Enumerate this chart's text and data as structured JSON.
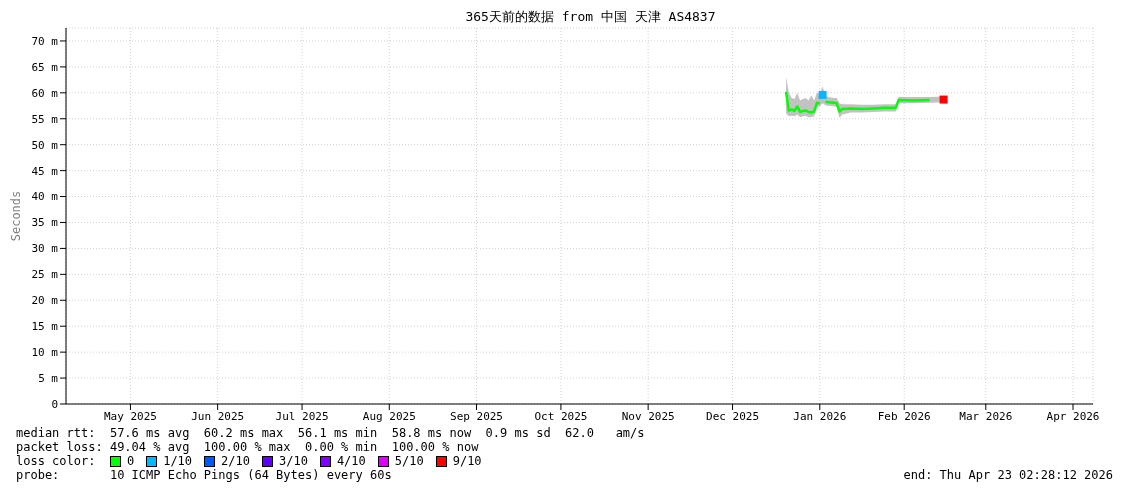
{
  "chart_data": {
    "type": "line",
    "title": "365天前的数据 from 中国 天津 AS4837",
    "ylabel": "Seconds",
    "legend_title": "loss color:",
    "legend": "bottom",
    "grid": true,
    "marker": "none",
    "line_style": "solid",
    "xlim": [
      "2025-04-23T02:28",
      "2026-04-23T02:28"
    ],
    "xticks": [
      {
        "value": "2025-05-16",
        "label": "May 2025"
      },
      {
        "value": "2025-06-16",
        "label": "Jun 2025"
      },
      {
        "value": "2025-07-16",
        "label": "Jul 2025"
      },
      {
        "value": "2025-08-16",
        "label": "Aug 2025"
      },
      {
        "value": "2025-09-16",
        "label": "Sep 2025"
      },
      {
        "value": "2025-10-16",
        "label": "Oct 2025"
      },
      {
        "value": "2025-11-16",
        "label": "Nov 2025"
      },
      {
        "value": "2025-12-16",
        "label": "Dec 2025"
      },
      {
        "value": "2026-01-16",
        "label": "Jan 2026"
      },
      {
        "value": "2026-02-15",
        "label": "Feb 2026"
      },
      {
        "value": "2026-03-16",
        "label": "Mar 2026"
      },
      {
        "value": "2026-04-16",
        "label": "Apr 2026"
      }
    ],
    "ylim": [
      0,
      72.5
    ],
    "yticks": [
      0,
      {
        "value": 5,
        "label": "5 m"
      },
      {
        "value": 10,
        "label": "10 m"
      },
      {
        "value": 15,
        "label": "15 m"
      },
      {
        "value": 20,
        "label": "20 m"
      },
      {
        "value": 25,
        "label": "25 m"
      },
      {
        "value": 30,
        "label": "30 m"
      },
      {
        "value": 35,
        "label": "35 m"
      },
      {
        "value": 40,
        "label": "40 m"
      },
      {
        "value": 45,
        "label": "45 m"
      },
      {
        "value": 50,
        "label": "50 m"
      },
      {
        "value": 55,
        "label": "55 m"
      },
      {
        "value": 60,
        "label": "60 m"
      },
      {
        "value": 65,
        "label": "65 m"
      },
      {
        "value": 70,
        "label": "70 m"
      }
    ],
    "x": [
      "2026-01-04",
      "2026-01-05",
      "2026-01-06",
      "2026-01-07",
      "2026-01-08",
      "2026-01-09",
      "2026-01-10",
      "2026-01-11",
      "2026-01-12",
      "2026-01-13",
      "2026-01-14",
      "2026-01-15",
      "2026-01-16",
      "2026-01-17",
      "2026-01-18",
      "2026-01-19",
      "2026-01-21",
      "2026-01-22",
      "2026-01-23",
      "2026-01-24",
      "2026-01-27",
      "2026-01-31",
      "2026-02-04",
      "2026-02-08",
      "2026-02-12",
      "2026-02-13",
      "2026-02-18",
      "2026-02-24",
      "2026-03-01"
    ],
    "series": [
      {
        "name": "0",
        "color": "#00ff00",
        "values": [
          60.2,
          56.6,
          56.8,
          56.5,
          57.4,
          56.3,
          56.5,
          56.6,
          56.3,
          56.2,
          56.4,
          58.1,
          58.0,
          null,
          58.3,
          58.2,
          58.1,
          58.0,
          56.4,
          56.9,
          57.0,
          56.9,
          57.0,
          57.1,
          57.1,
          58.6,
          58.5,
          58.6,
          null
        ],
        "lower": [
          56.0,
          55.5,
          55.6,
          55.5,
          55.8,
          55.3,
          55.5,
          55.6,
          55.3,
          55.3,
          55.5,
          57.5,
          57.4,
          58.0,
          57.6,
          57.5,
          57.4,
          57.2,
          55.2,
          55.8,
          56.2,
          56.2,
          56.3,
          56.4,
          56.4,
          58.0,
          58.0,
          58.1,
          58.2
        ],
        "upper": [
          63.0,
          60.0,
          59.0,
          58.8,
          60.0,
          58.5,
          58.8,
          59.0,
          58.5,
          59.5,
          58.5,
          60.0,
          59.8,
          61.2,
          59.5,
          59.2,
          59.0,
          59.0,
          58.0,
          57.8,
          57.8,
          57.7,
          57.7,
          57.8,
          57.8,
          59.2,
          59.2,
          59.2,
          59.3
        ]
      },
      {
        "name": "1/10",
        "type": "scatter",
        "marker": "square",
        "color": "#00b8ff",
        "values": [
          null,
          null,
          null,
          null,
          null,
          null,
          null,
          null,
          null,
          null,
          null,
          null,
          null,
          59.6,
          null,
          null,
          null,
          null,
          null,
          null,
          null,
          null,
          null,
          null,
          null,
          null,
          null,
          null,
          null
        ]
      },
      {
        "name": "2/10",
        "color": "#0059ff",
        "values": [
          null,
          null,
          null,
          null,
          null,
          null,
          null,
          null,
          null,
          null,
          null,
          null,
          null,
          null,
          null,
          null,
          null,
          null,
          null,
          null,
          null,
          null,
          null,
          null,
          null,
          null,
          null,
          null,
          null
        ]
      },
      {
        "name": "3/10",
        "color": "#5e00ff",
        "values": [
          null,
          null,
          null,
          null,
          null,
          null,
          null,
          null,
          null,
          null,
          null,
          null,
          null,
          null,
          null,
          null,
          null,
          null,
          null,
          null,
          null,
          null,
          null,
          null,
          null,
          null,
          null,
          null,
          null
        ]
      },
      {
        "name": "4/10",
        "color": "#7e00ff",
        "values": [
          null,
          null,
          null,
          null,
          null,
          null,
          null,
          null,
          null,
          null,
          null,
          null,
          null,
          null,
          null,
          null,
          null,
          null,
          null,
          null,
          null,
          null,
          null,
          null,
          null,
          null,
          null,
          null,
          null
        ]
      },
      {
        "name": "5/10",
        "color": "#dd00ff",
        "values": [
          null,
          null,
          null,
          null,
          null,
          null,
          null,
          null,
          null,
          null,
          null,
          null,
          null,
          null,
          null,
          null,
          null,
          null,
          null,
          null,
          null,
          null,
          null,
          null,
          null,
          null,
          null,
          null,
          null
        ]
      },
      {
        "name": "9/10",
        "type": "scatter",
        "marker": "square",
        "color": "#ff0000",
        "values": [
          null,
          null,
          null,
          null,
          null,
          null,
          null,
          null,
          null,
          null,
          null,
          null,
          null,
          null,
          null,
          null,
          null,
          null,
          null,
          null,
          null,
          null,
          null,
          null,
          null,
          null,
          null,
          null,
          58.7
        ]
      }
    ],
    "annotations": [
      "median rtt:  57.6 ms avg  60.2 ms max  56.1 ms min  58.8 ms now  0.9 ms sd  62.0   am/s",
      "packet loss: 49.04 % avg  100.00 % max  0.00 % min  100.00 % now",
      "probe:       10 ICMP Echo Pings (64 Bytes) every 60s",
      "end: Thu Apr 23 02:28:12 2026"
    ]
  }
}
